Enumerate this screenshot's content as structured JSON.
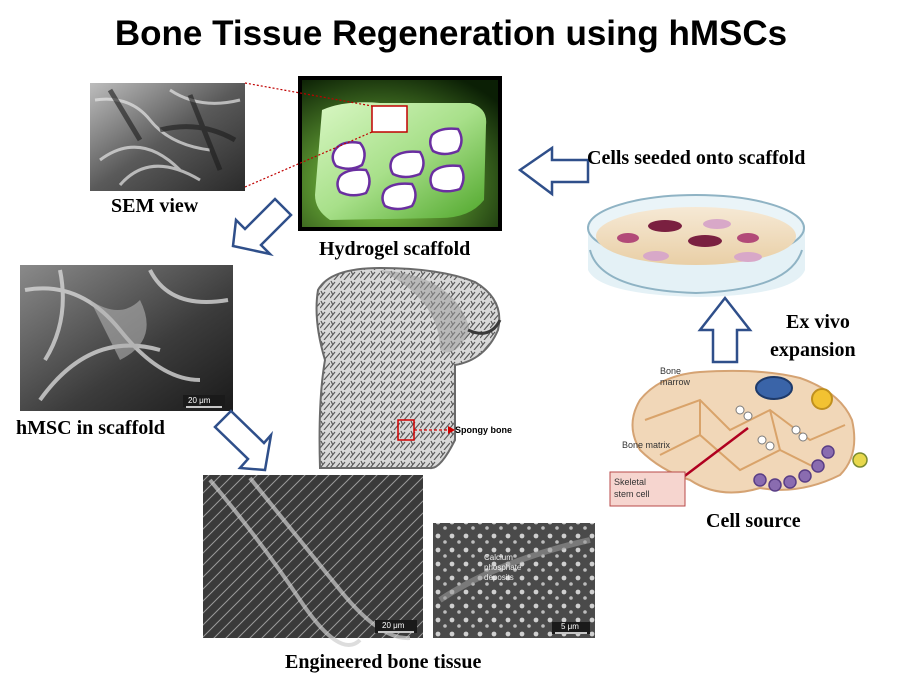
{
  "title": "Bone Tissue Regeneration using hMSCs",
  "labels": {
    "sem_view": "SEM view",
    "hydrogel_scaffold": "Hydrogel scaffold",
    "cells_seeded": "Cells seeded onto scaffold",
    "ex_vivo_line1": "Ex vivo",
    "ex_vivo_line2": "expansion",
    "hmsc_in_scaffold": "hMSC in scaffold",
    "cell_source": "Cell source",
    "engineered_bone": "Engineered bone tissue"
  },
  "annotations": {
    "spongy_bone": "Spongy bone",
    "bone_marrow_1": "Bone",
    "bone_marrow_2": "marrow",
    "bone_matrix": "Bone matrix",
    "skeletal_stem_1": "Skeletal",
    "skeletal_stem_2": "stem cell",
    "scale_hmsc": "20 μm",
    "scale_bone1": "20 μm",
    "scale_bone2": "5 μm",
    "calcium_1": "Calcium",
    "calcium_2": "phosphate",
    "calcium_3": "deposits"
  },
  "colors": {
    "arrow_stroke": "#2f4f8a",
    "scaffold_green": "#7ad24a",
    "pore_outline": "#6a2fa0",
    "leader_red": "#c00000",
    "dish_cell_dark": "#7a2040",
    "dish_cell_light": "#d8a8c8"
  }
}
